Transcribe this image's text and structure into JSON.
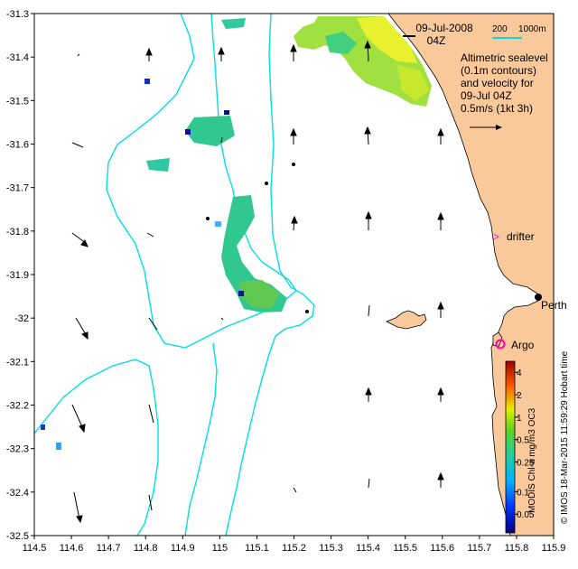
{
  "map": {
    "title_date": "09-Jul-2008",
    "title_time": "04Z",
    "scale": {
      "bar_label": "200",
      "depth_label": "1000m"
    },
    "legend_lines": [
      "Altimetric sealevel",
      "(0.1m contours)",
      "and velocity for",
      "09-Jul 04Z",
      "0.5m/s (1kt 3h)"
    ],
    "x_ticks": [
      "114.5",
      "114.6",
      "114.7",
      "114.8",
      "114.9",
      "115",
      "115.1",
      "115.2",
      "115.3",
      "115.4",
      "115.5",
      "115.6",
      "115.7",
      "115.8",
      "115.9"
    ],
    "y_ticks": [
      "-31.3",
      "-31.4",
      "-31.5",
      "-31.6",
      "-31.7",
      "-31.8",
      "-31.9",
      "-32",
      "-32.1",
      "-32.2",
      "-32.3",
      "-32.4",
      "-32.5"
    ],
    "x_range": [
      114.5,
      115.9
    ],
    "y_range": [
      -32.5,
      -31.3
    ],
    "places": {
      "perth": "Perth",
      "drifter": "drifter",
      "argo": "Argo"
    },
    "colorbar": {
      "ticks": [
        "4",
        "2",
        "1",
        "0.5",
        "0.25",
        "0.1",
        "0.05"
      ],
      "label": "MODIS Chl-a mg/m3 OC3"
    },
    "credit": "© IMOS 18-Mar-2015 11:59:29 Hobart time",
    "colors": {
      "land": "#f9c99c",
      "isobath": "#00e0e0",
      "drifter": "#ff00ff",
      "argo": "#ff00aa"
    }
  }
}
